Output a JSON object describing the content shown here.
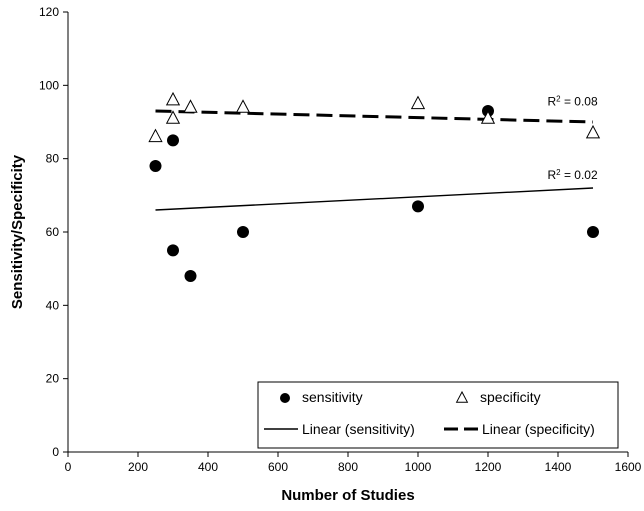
{
  "chart_data": {
    "type": "scatter",
    "title": "",
    "xlabel": "Number of Studies",
    "ylabel": "Sensitivity/Specificity",
    "xlim": [
      0,
      1600
    ],
    "ylim": [
      0,
      120
    ],
    "xticks": [
      0,
      200,
      400,
      600,
      800,
      1000,
      1200,
      1400,
      1600
    ],
    "yticks": [
      0,
      20,
      40,
      60,
      80,
      100,
      120
    ],
    "grid": false,
    "legend_position": "bottom-right",
    "series": [
      {
        "name": "sensitivity",
        "marker": "filled-circle",
        "color": "#000000",
        "points": [
          {
            "x": 250,
            "y": 78
          },
          {
            "x": 300,
            "y": 85
          },
          {
            "x": 300,
            "y": 55
          },
          {
            "x": 350,
            "y": 48
          },
          {
            "x": 500,
            "y": 60
          },
          {
            "x": 1000,
            "y": 67
          },
          {
            "x": 1200,
            "y": 93
          },
          {
            "x": 1500,
            "y": 60
          }
        ]
      },
      {
        "name": "specificity",
        "marker": "open-triangle",
        "color": "#000000",
        "points": [
          {
            "x": 250,
            "y": 86
          },
          {
            "x": 300,
            "y": 96
          },
          {
            "x": 300,
            "y": 91
          },
          {
            "x": 350,
            "y": 94
          },
          {
            "x": 500,
            "y": 94
          },
          {
            "x": 1000,
            "y": 95
          },
          {
            "x": 1200,
            "y": 91
          },
          {
            "x": 1500,
            "y": 87
          }
        ]
      }
    ],
    "trendlines": [
      {
        "name": "Linear (sensitivity)",
        "style": "solid",
        "x": [
          250,
          1500
        ],
        "y": [
          66,
          72
        ],
        "r2_label_prefix": "R",
        "r2_label_suffix": " = 0.02",
        "r2_label_at": {
          "x": 1370,
          "y": 74.5
        }
      },
      {
        "name": "Linear (specificity)",
        "style": "dashed",
        "x": [
          250,
          1500
        ],
        "y": [
          93,
          90
        ],
        "r2_label_prefix": "R",
        "r2_label_suffix": " = 0.08",
        "r2_label_at": {
          "x": 1370,
          "y": 94.5
        }
      }
    ],
    "superscript": "2"
  }
}
